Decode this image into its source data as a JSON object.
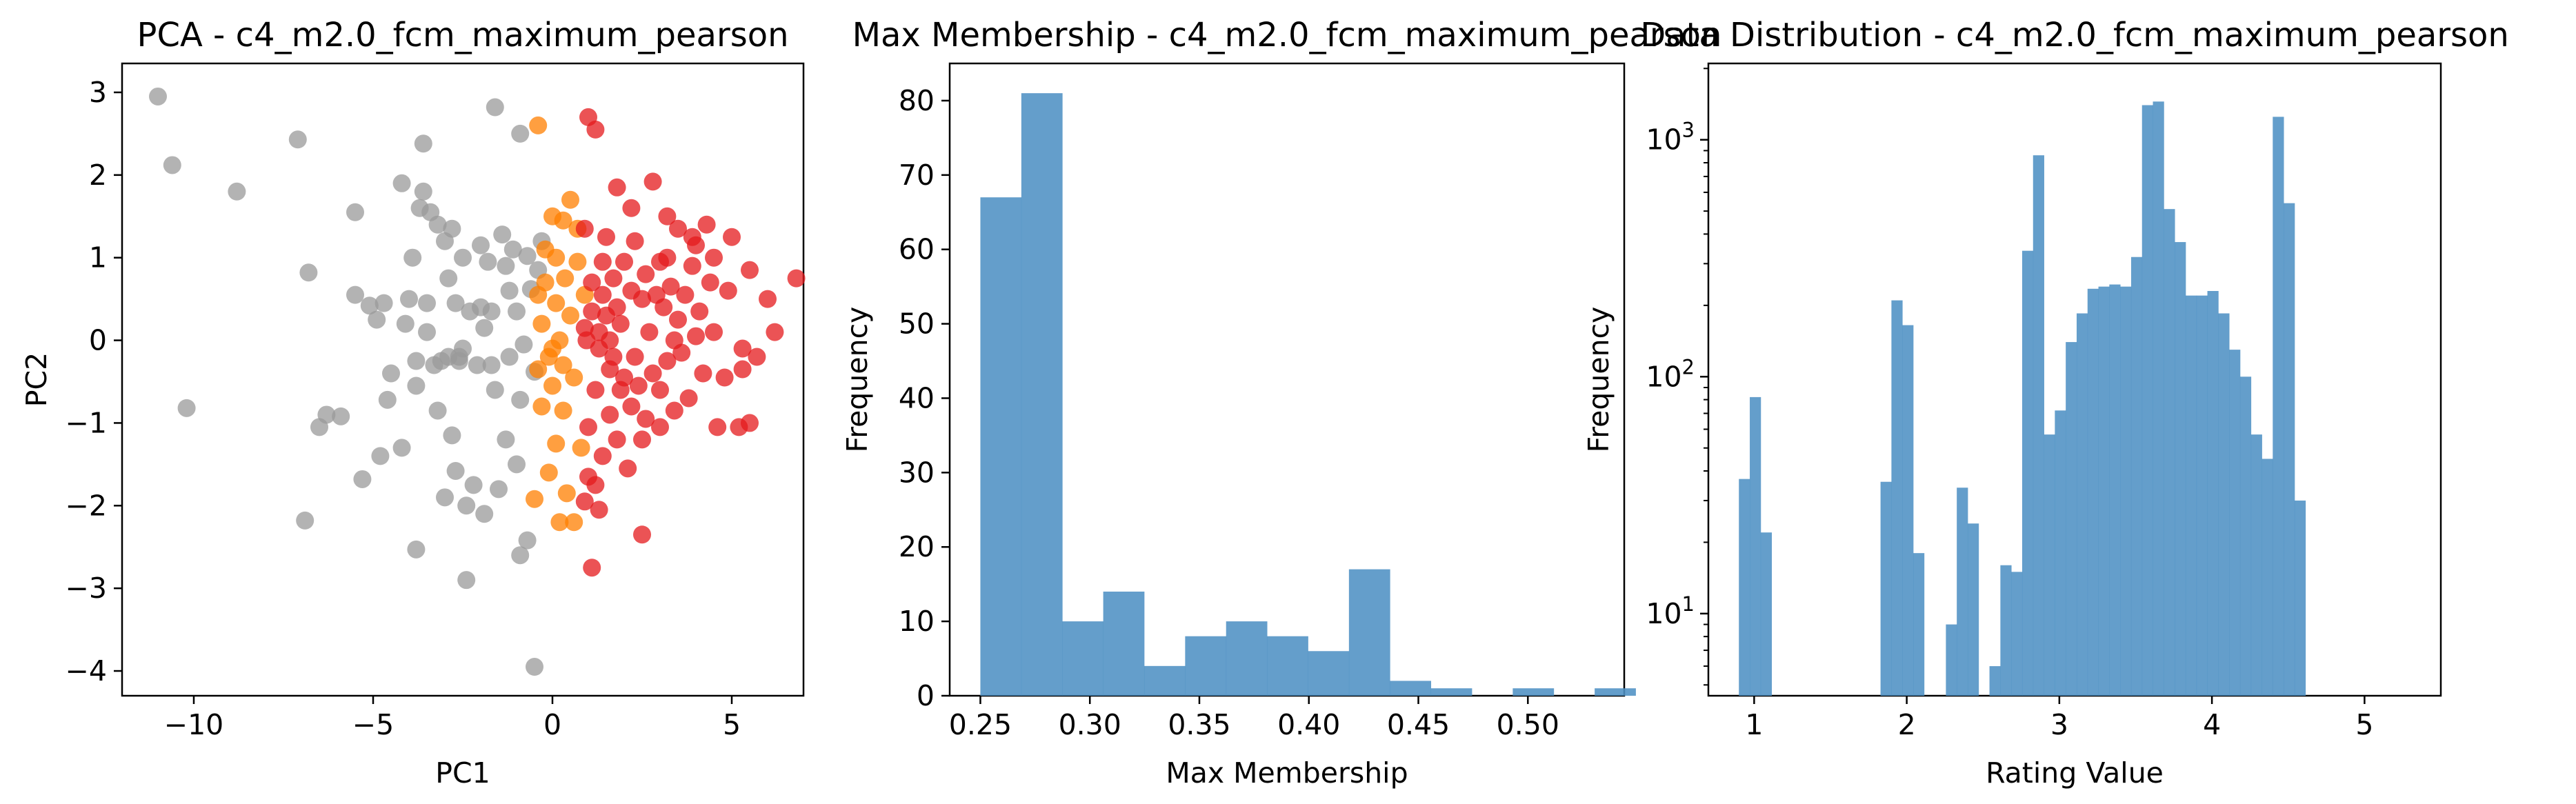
{
  "colors": {
    "gray": "#999999",
    "orange": "#ff7f00",
    "red": "#e41a1c",
    "bar": "#4f91c4",
    "axis": "#000000"
  },
  "chart_data": [
    {
      "type": "scatter",
      "title": "PCA - c4_m2.0_fcm_maximum_pearson",
      "xlabel": "PC1",
      "ylabel": "PC2",
      "xlim": [
        -12,
        7
      ],
      "ylim": [
        -4.3,
        3.35
      ],
      "xticks": [
        -10,
        -5,
        0,
        5
      ],
      "yticks": [
        -4,
        -3,
        -2,
        -1,
        0,
        1,
        2,
        3
      ],
      "grid": false,
      "series": [
        {
          "color_key": "gray",
          "points": [
            [
              -11.0,
              2.95
            ],
            [
              -10.6,
              2.12
            ],
            [
              -8.8,
              1.8
            ],
            [
              -10.2,
              -0.82
            ],
            [
              -7.1,
              2.43
            ],
            [
              -6.8,
              0.82
            ],
            [
              -6.9,
              -2.18
            ],
            [
              -6.5,
              -1.05
            ],
            [
              -6.3,
              -0.9
            ],
            [
              -5.9,
              -0.92
            ],
            [
              -5.5,
              1.55
            ],
            [
              -5.5,
              0.55
            ],
            [
              -5.3,
              -1.68
            ],
            [
              -5.1,
              0.42
            ],
            [
              -4.9,
              0.25
            ],
            [
              -4.7,
              0.45
            ],
            [
              -4.6,
              -0.72
            ],
            [
              -4.5,
              -0.4
            ],
            [
              -4.2,
              -1.3
            ],
            [
              -4.2,
              1.9
            ],
            [
              -4.1,
              0.2
            ],
            [
              -4.0,
              0.5
            ],
            [
              -3.9,
              1.0
            ],
            [
              -3.8,
              -0.55
            ],
            [
              -3.8,
              -0.25
            ],
            [
              -3.7,
              1.6
            ],
            [
              -3.6,
              2.38
            ],
            [
              -3.6,
              1.8
            ],
            [
              -3.5,
              0.1
            ],
            [
              -3.4,
              1.55
            ],
            [
              -3.3,
              -0.3
            ],
            [
              -3.2,
              -0.85
            ],
            [
              -3.1,
              -0.25
            ],
            [
              -3.0,
              1.2
            ],
            [
              -2.9,
              0.75
            ],
            [
              -2.9,
              -0.2
            ],
            [
              -2.8,
              -1.15
            ],
            [
              -2.7,
              0.45
            ],
            [
              -2.6,
              -0.25
            ],
            [
              -2.5,
              -0.1
            ],
            [
              -2.4,
              -2.0
            ],
            [
              -2.3,
              0.35
            ],
            [
              -2.2,
              -1.75
            ],
            [
              -2.1,
              -0.3
            ],
            [
              -2.0,
              1.15
            ],
            [
              -1.9,
              0.15
            ],
            [
              -1.8,
              0.95
            ],
            [
              -1.7,
              0.35
            ],
            [
              -1.6,
              -0.6
            ],
            [
              -1.6,
              2.82
            ],
            [
              -1.5,
              -1.8
            ],
            [
              -1.4,
              1.28
            ],
            [
              -1.3,
              0.9
            ],
            [
              -1.3,
              -1.2
            ],
            [
              -1.2,
              -0.2
            ],
            [
              -1.1,
              1.1
            ],
            [
              -1.0,
              0.35
            ],
            [
              -1.0,
              -1.5
            ],
            [
              -0.9,
              -0.72
            ],
            [
              -0.9,
              2.5
            ],
            [
              -0.8,
              -0.05
            ],
            [
              -0.7,
              1.02
            ],
            [
              -0.7,
              -2.42
            ],
            [
              -0.6,
              0.62
            ],
            [
              -0.5,
              -0.38
            ],
            [
              -0.4,
              0.85
            ],
            [
              -0.3,
              1.2
            ],
            [
              -0.5,
              -3.95
            ],
            [
              -2.4,
              -2.9
            ],
            [
              -3.8,
              -2.53
            ],
            [
              -2.7,
              -1.58
            ],
            [
              -2.6,
              -0.2
            ],
            [
              -3.0,
              -1.9
            ],
            [
              -4.8,
              -1.4
            ],
            [
              -1.9,
              -2.1
            ],
            [
              -2.8,
              1.35
            ],
            [
              -3.5,
              0.45
            ],
            [
              -1.2,
              0.6
            ],
            [
              -0.9,
              -2.6
            ],
            [
              -1.7,
              -0.3
            ],
            [
              -2.0,
              0.4
            ],
            [
              -3.2,
              1.4
            ],
            [
              -2.5,
              1.0
            ]
          ]
        },
        {
          "color_key": "orange",
          "points": [
            [
              -0.4,
              2.6
            ],
            [
              0.0,
              1.5
            ],
            [
              0.3,
              1.45
            ],
            [
              0.5,
              1.7
            ],
            [
              0.7,
              1.35
            ],
            [
              0.1,
              1.0
            ],
            [
              -0.2,
              0.7
            ],
            [
              -0.4,
              0.55
            ],
            [
              0.1,
              0.45
            ],
            [
              0.5,
              0.3
            ],
            [
              -0.3,
              0.2
            ],
            [
              0.2,
              0.0
            ],
            [
              -0.1,
              -0.2
            ],
            [
              -0.4,
              -0.35
            ],
            [
              0.3,
              -0.3
            ],
            [
              0.0,
              -0.55
            ],
            [
              -0.3,
              -0.8
            ],
            [
              0.3,
              -0.85
            ],
            [
              0.1,
              -1.25
            ],
            [
              -0.1,
              -1.6
            ],
            [
              0.4,
              -1.85
            ],
            [
              -0.5,
              -1.92
            ],
            [
              0.2,
              -2.2
            ],
            [
              0.6,
              -2.2
            ],
            [
              0.9,
              0.55
            ],
            [
              0.7,
              0.95
            ],
            [
              0.35,
              0.75
            ],
            [
              -0.2,
              1.1
            ],
            [
              0.6,
              -0.45
            ],
            [
              0.8,
              -1.3
            ],
            [
              0.0,
              -0.1
            ]
          ]
        },
        {
          "color_key": "red",
          "points": [
            [
              1.0,
              2.7
            ],
            [
              1.2,
              2.55
            ],
            [
              0.9,
              1.35
            ],
            [
              1.5,
              1.25
            ],
            [
              1.8,
              1.85
            ],
            [
              2.2,
              1.6
            ],
            [
              2.8,
              1.92
            ],
            [
              3.2,
              1.5
            ],
            [
              3.5,
              1.35
            ],
            [
              3.9,
              1.25
            ],
            [
              4.3,
              1.4
            ],
            [
              4.5,
              1.0
            ],
            [
              5.0,
              1.25
            ],
            [
              5.5,
              0.85
            ],
            [
              6.0,
              0.5
            ],
            [
              6.8,
              0.75
            ],
            [
              6.2,
              0.1
            ],
            [
              5.7,
              -0.2
            ],
            [
              5.3,
              -0.35
            ],
            [
              4.8,
              -0.45
            ],
            [
              4.5,
              0.1
            ],
            [
              4.1,
              0.35
            ],
            [
              3.7,
              0.55
            ],
            [
              3.3,
              0.65
            ],
            [
              3.0,
              0.95
            ],
            [
              2.6,
              0.8
            ],
            [
              2.3,
              1.2
            ],
            [
              2.0,
              0.95
            ],
            [
              1.7,
              0.75
            ],
            [
              1.4,
              0.55
            ],
            [
              1.1,
              0.35
            ],
            [
              0.9,
              0.15
            ],
            [
              1.3,
              -0.1
            ],
            [
              1.6,
              -0.35
            ],
            [
              1.9,
              -0.6
            ],
            [
              2.2,
              -0.8
            ],
            [
              2.6,
              -0.95
            ],
            [
              3.0,
              -1.05
            ],
            [
              3.4,
              -0.85
            ],
            [
              3.8,
              -0.7
            ],
            [
              4.2,
              -0.4
            ],
            [
              4.0,
              0.05
            ],
            [
              3.5,
              0.25
            ],
            [
              3.1,
              0.4
            ],
            [
              2.7,
              0.1
            ],
            [
              2.3,
              -0.2
            ],
            [
              1.9,
              0.2
            ],
            [
              1.5,
              0.3
            ],
            [
              1.2,
              -0.6
            ],
            [
              1.0,
              -1.05
            ],
            [
              1.4,
              -1.4
            ],
            [
              1.8,
              -1.2
            ],
            [
              2.1,
              -1.55
            ],
            [
              2.5,
              -1.2
            ],
            [
              1.2,
              -1.75
            ],
            [
              1.0,
              -1.65
            ],
            [
              0.9,
              -1.95
            ],
            [
              1.3,
              -2.05
            ],
            [
              2.5,
              -2.35
            ],
            [
              1.1,
              -2.75
            ],
            [
              1.6,
              -0.9
            ],
            [
              2.0,
              -0.45
            ],
            [
              2.4,
              -0.55
            ],
            [
              2.8,
              -0.4
            ],
            [
              3.2,
              -0.25
            ],
            [
              3.6,
              -0.15
            ],
            [
              4.6,
              -1.05
            ],
            [
              5.2,
              -1.05
            ],
            [
              5.5,
              -1.0
            ],
            [
              4.9,
              0.6
            ],
            [
              5.3,
              -0.1
            ],
            [
              4.4,
              0.7
            ],
            [
              3.9,
              0.9
            ],
            [
              3.2,
              1.0
            ],
            [
              2.5,
              0.5
            ],
            [
              1.8,
              0.4
            ],
            [
              1.4,
              0.95
            ],
            [
              1.1,
              0.7
            ],
            [
              0.95,
              0.0
            ],
            [
              1.6,
              0.0
            ],
            [
              2.9,
              0.55
            ],
            [
              3.4,
              0.0
            ],
            [
              3.0,
              -0.6
            ],
            [
              2.2,
              0.6
            ],
            [
              1.3,
              0.1
            ],
            [
              1.7,
              -0.2
            ],
            [
              4.0,
              1.15
            ]
          ]
        }
      ]
    },
    {
      "type": "bar",
      "title": "Max Membership - c4_m2.0_fcm_maximum_pearson",
      "xlabel": "Max Membership",
      "ylabel": "Frequency",
      "xlim": [
        0.236,
        0.544
      ],
      "ylim": [
        0,
        85
      ],
      "xticks": [
        "0.25",
        "0.30",
        "0.35",
        "0.40",
        "0.45",
        "0.50"
      ],
      "yticks": [
        0,
        10,
        20,
        30,
        40,
        50,
        60,
        70,
        80
      ],
      "grid": false,
      "bin_start": 0.25,
      "bin_width": 0.0187,
      "values": [
        67,
        81,
        10,
        14,
        4,
        8,
        10,
        8,
        6,
        17,
        2,
        1,
        0,
        1,
        0,
        1
      ]
    },
    {
      "type": "bar",
      "title": "Data Distribution - c4_m2.0_fcm_maximum_pearson",
      "xlabel": "Rating Value",
      "ylabel": "Frequency",
      "xlim": [
        0.7,
        5.5
      ],
      "ylim": [
        4.5,
        2100
      ],
      "yscale": "log",
      "xticks": [
        "1",
        "2",
        "3",
        "4",
        "5"
      ],
      "yticks": [
        10,
        100,
        1000
      ],
      "ytick_labels": [
        {
          "base": "10",
          "exp": "1"
        },
        {
          "base": "10",
          "exp": "2"
        },
        {
          "base": "10",
          "exp": "3"
        }
      ],
      "grid": false,
      "bin_start": 0.9,
      "bin_width": 0.0714,
      "values": [
        37,
        82,
        22,
        0,
        0,
        0,
        0,
        0,
        0,
        0,
        0,
        0,
        0,
        36,
        210,
        165,
        18,
        0,
        0,
        9,
        34,
        24,
        0,
        6,
        16,
        15,
        340,
        860,
        57,
        72,
        140,
        185,
        235,
        240,
        245,
        240,
        320,
        1400,
        1450,
        510,
        370,
        220,
        220,
        230,
        185,
        130,
        100,
        57,
        45,
        1250,
        540,
        30
      ]
    }
  ]
}
